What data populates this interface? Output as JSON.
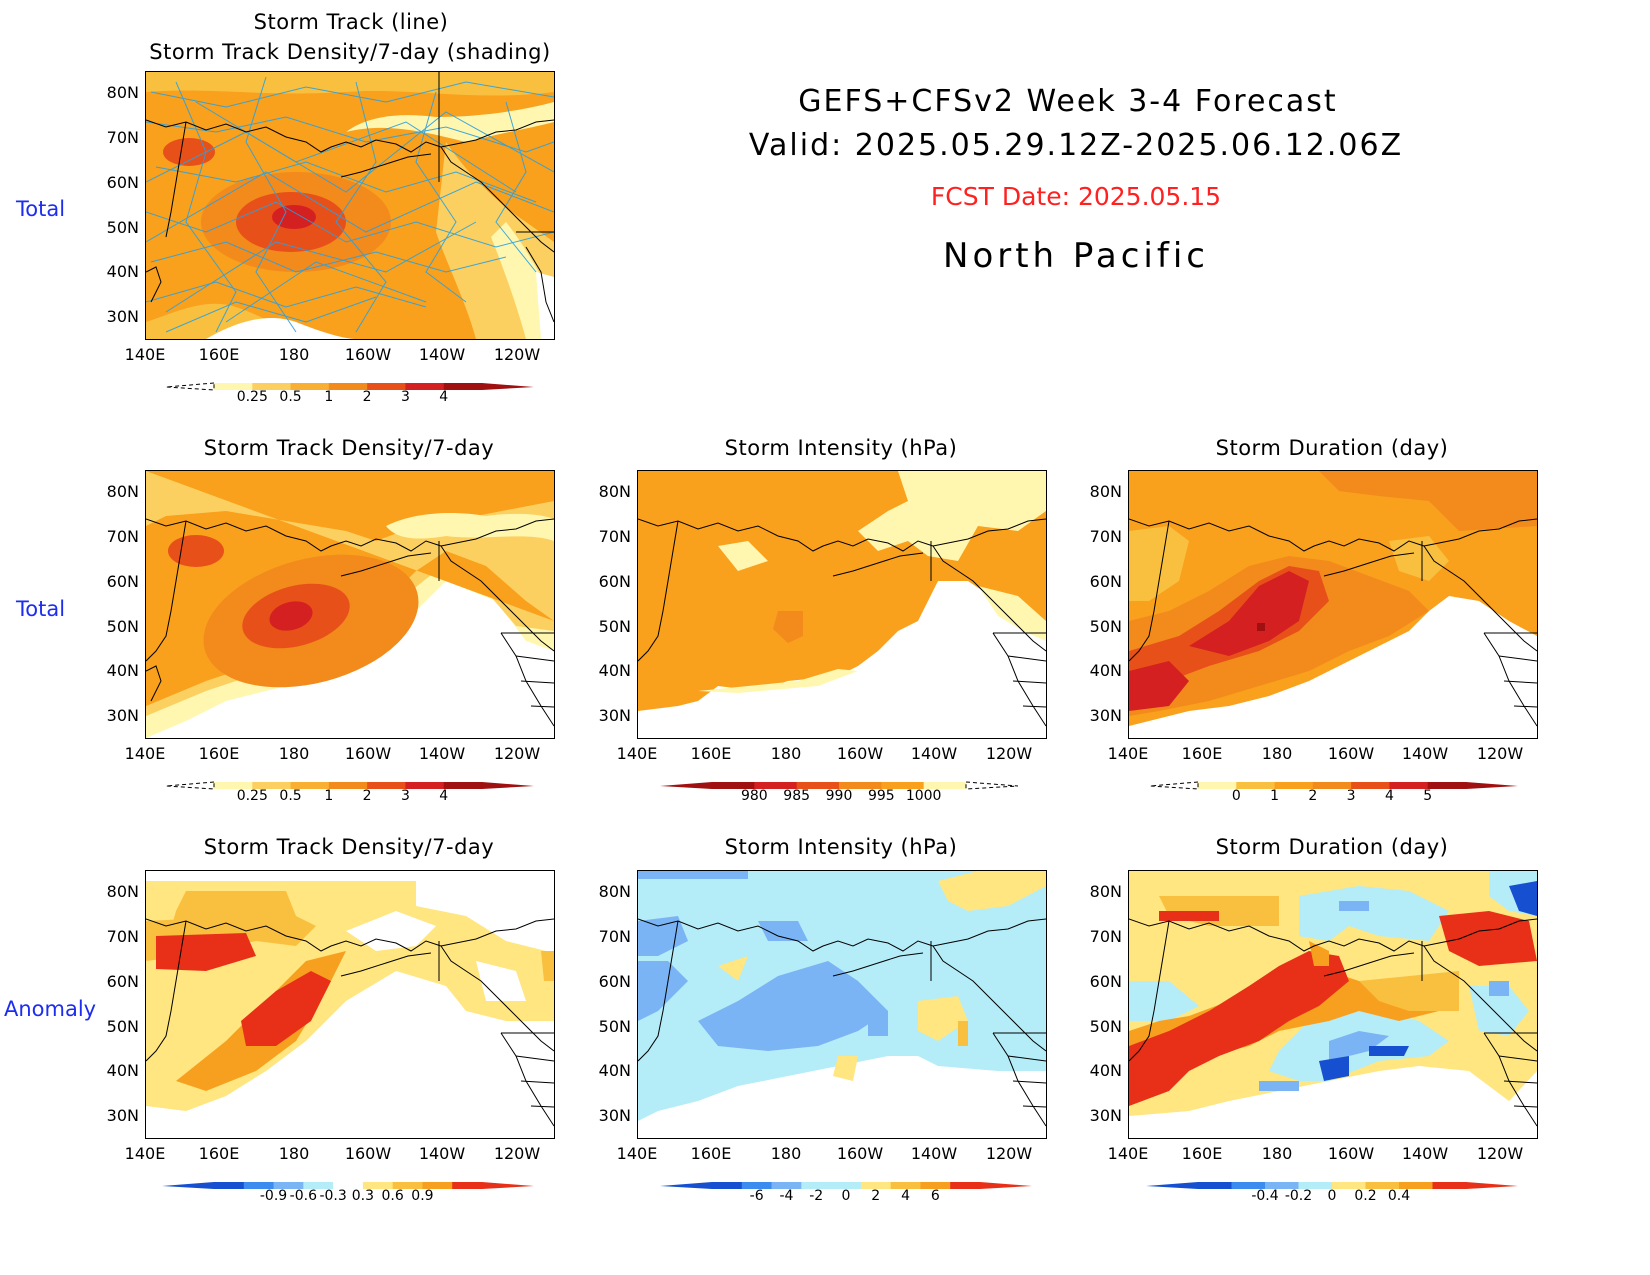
{
  "header": {
    "line1": "GEFS+CFSv2 Week 3-4 Forecast",
    "line2": "Valid: 2025.05.29.12Z-2025.06.12.06Z",
    "fcst": "FCST Date: 2025.05.15",
    "region": "North Pacific",
    "fcst_color": "#ff2020"
  },
  "row_labels": {
    "row1": "Total",
    "row2": "Total",
    "row3": "Anomaly"
  },
  "top_panel": {
    "title1": "Storm Track (line)",
    "title2": "Storm Track Density/7-day (shading)"
  },
  "panels": {
    "r2c1": {
      "title": "Storm Track Density/7-day"
    },
    "r2c2": {
      "title": "Storm Intensity (hPa)"
    },
    "r2c3": {
      "title": "Storm Duration (day)"
    },
    "r3c1": {
      "title": "Storm Track Density/7-day"
    },
    "r3c2": {
      "title": "Storm Intensity (hPa)"
    },
    "r3c3": {
      "title": "Storm Duration (day)"
    }
  },
  "axes": {
    "x_ticks": [
      "140E",
      "160E",
      "180",
      "160W",
      "140W",
      "120W"
    ],
    "y_ticks": [
      "80N",
      "70N",
      "60N",
      "50N",
      "40N",
      "30N"
    ]
  },
  "colorbars": {
    "density": {
      "labels": [
        "0.25",
        "0.5",
        "1",
        "2",
        "3",
        "4"
      ],
      "colors": [
        "#fff7b0",
        "#fcd060",
        "#f9b032",
        "#f28a1c",
        "#e8501a",
        "#d42020",
        "#a01010"
      ]
    },
    "intensity": {
      "labels": [
        "980",
        "985",
        "990",
        "995",
        "1000"
      ],
      "colors": [
        "#a01010",
        "#d42020",
        "#e8501a",
        "#f28a1c",
        "#f9a01c",
        "#fff7b0"
      ]
    },
    "duration": {
      "labels": [
        "0",
        "1",
        "2",
        "3",
        "4",
        "5"
      ],
      "colors": [
        "#fff7b0",
        "#f9c040",
        "#f9a01c",
        "#f28a1c",
        "#e8501a",
        "#d42020",
        "#a01010"
      ]
    },
    "density_anom": {
      "labels": [
        "-0.9",
        "-0.6",
        "-0.3",
        "0.3",
        "0.6",
        "0.9"
      ],
      "colors": [
        "#1650d0",
        "#3c8cf0",
        "#7ab4f4",
        "#b4ecf8",
        "#ffffff",
        "#ffe680",
        "#f9c040",
        "#f7a020",
        "#e83018"
      ]
    },
    "intensity_anom": {
      "labels": [
        "-6",
        "-4",
        "-2",
        "0",
        "2",
        "4",
        "6"
      ],
      "colors": [
        "#1650d0",
        "#3c8cf0",
        "#7ab4f4",
        "#b4ecf8",
        "#b4ecf8",
        "#ffe680",
        "#f9c040",
        "#f7a020",
        "#e83018"
      ]
    },
    "duration_anom": {
      "labels": [
        "-0.4",
        "-0.2",
        "0",
        "0.2",
        "0.4"
      ],
      "colors": [
        "#1650d0",
        "#3c8cf0",
        "#7ab4f4",
        "#b4ecf8",
        "#ffe680",
        "#f9c040",
        "#f7a020",
        "#e83018"
      ]
    }
  }
}
